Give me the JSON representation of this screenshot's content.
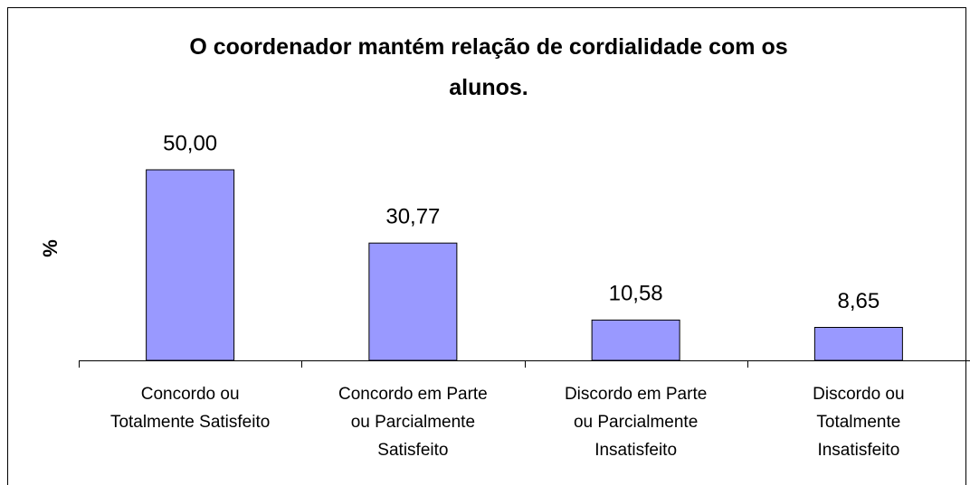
{
  "chart_data": {
    "type": "bar",
    "title": "O coordenador mantém relação de cordialidade com os alunos.",
    "ylabel": "%",
    "categories": [
      [
        "Concordo ou",
        "Totalmente Satisfeito"
      ],
      [
        "Concordo em Parte",
        "ou Parcialmente",
        "Satisfeito"
      ],
      [
        "Discordo em Parte",
        "ou Parcialmente",
        "Insatisfeito"
      ],
      [
        "Discordo ou",
        "Totalmente",
        "Insatisfeito"
      ]
    ],
    "values": [
      50.0,
      30.77,
      10.58,
      8.65
    ],
    "value_labels": [
      "50,00",
      "30,77",
      "10,58",
      "8,65"
    ],
    "color": "#9999ff"
  }
}
